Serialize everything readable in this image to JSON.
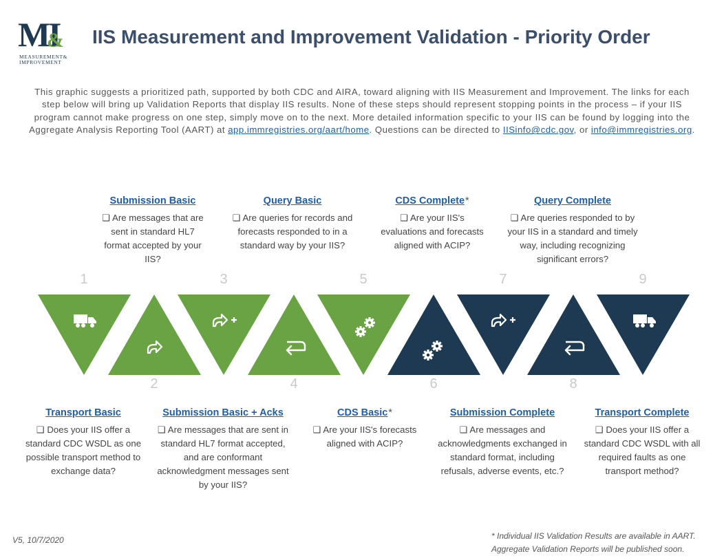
{
  "logo": {
    "letters": "M&I",
    "line1": "MEASUREMENT&",
    "line2": "IMPROVEMENT"
  },
  "title": "IIS Measurement and Improvement Validation - Priority Order",
  "intro": {
    "text1": "This graphic suggests a prioritized path, supported by both CDC and AIRA, toward aligning with IIS Measurement and Improvement. The links for each step below will bring up Validation Reports that display IIS results. None of these steps should represent stopping points in the process – if your IIS program cannot make progress on one step, simply move on to the next. More detailed information specific to your IIS can be found by logging into the Aggregate Analysis Reporting Tool (AART) at ",
    "link_aart": "app.immregistries.org/aart/home",
    "text2": ". Questions can be directed to ",
    "link_cdc": "IISinfo@cdc.gov",
    "text3": ", or ",
    "link_aira": "info@immregistries.org",
    "text4": "."
  },
  "colors": {
    "green": "#6aa344",
    "navy": "#1e3a52",
    "link": "#1f5fa8",
    "number": "#c9c9c9"
  },
  "steps": [
    {
      "num": "1",
      "title": "Transport Basic",
      "asterisk": "",
      "desc": "❑ Does your IIS offer a standard CDC WSDL as one possible transport method to exchange data?",
      "color": "green",
      "icon": "truck-icon"
    },
    {
      "num": "2",
      "title": "Submission Basic",
      "asterisk": "",
      "desc": "❑ Are messages that are sent in standard HL7 format accepted by your IIS?",
      "color": "green",
      "icon": "share-arrow-icon"
    },
    {
      "num": "3",
      "title": "Submission Basic + Acks",
      "asterisk": "",
      "desc": "❑ Are messages that are sent in standard HL7 format accepted, and are conformant acknowledgment messages sent by your IIS?",
      "color": "green",
      "icon": "share-arrow-plus-icon"
    },
    {
      "num": "4",
      "title": "Query Basic",
      "asterisk": "",
      "desc": "❑ Are queries for records and forecasts responded to in a standard way by your IIS?",
      "color": "green",
      "icon": "return-arrow-icon"
    },
    {
      "num": "5",
      "title": "CDS Basic",
      "asterisk": "*",
      "desc": "❑ Are your IIS's forecasts aligned with ACIP?",
      "color": "green",
      "icon": "gears-icon"
    },
    {
      "num": "6",
      "title": "CDS Complete",
      "asterisk": "*",
      "desc": "❑ Are your IIS's evaluations and forecasts aligned with ACIP?",
      "color": "navy",
      "icon": "gears-icon"
    },
    {
      "num": "7",
      "title": "Submission Complete",
      "asterisk": "",
      "desc": "❑ Are messages and acknowledgments exchanged in standard format, including refusals, adverse events, etc.?",
      "color": "navy",
      "icon": "share-arrow-plus-icon"
    },
    {
      "num": "8",
      "title": "Query Complete",
      "asterisk": "",
      "desc": "❑ Are queries responded to by your IIS in a standard and timely way, including recognizing significant errors?",
      "color": "navy",
      "icon": "return-arrow-icon"
    },
    {
      "num": "9",
      "title": "Transport Complete",
      "asterisk": "",
      "desc": "❑ Does your IIS offer a standard CDC WSDL with all required faults as one transport method?",
      "color": "navy",
      "icon": "truck-icon"
    }
  ],
  "version": "V5, 10/7/2020",
  "footnote": "* Individual IIS Validation Results are available in AART. Aggregate Validation Reports will be published soon."
}
